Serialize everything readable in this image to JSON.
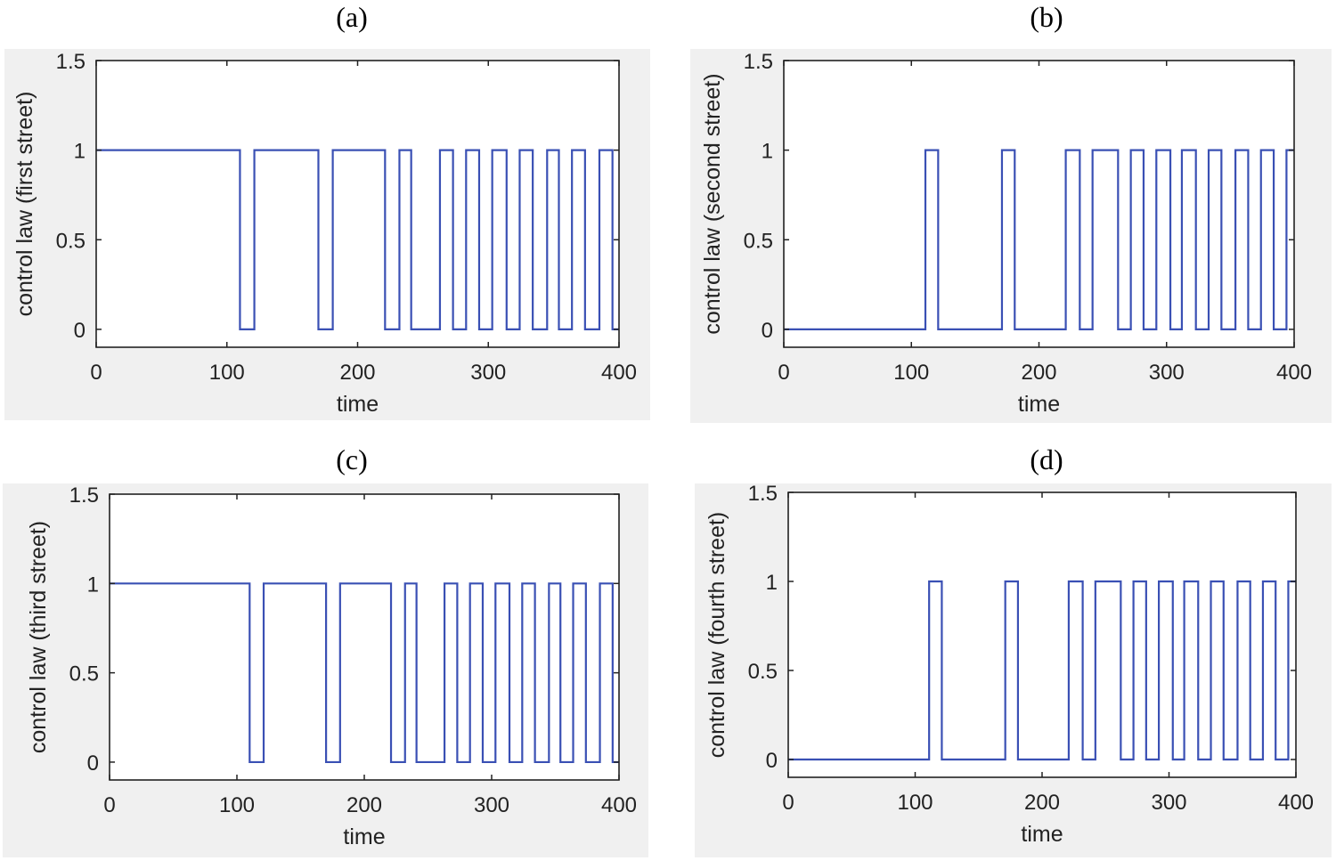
{
  "chart_data": [
    {
      "type": "line",
      "panel_label": "(a)",
      "xlabel": "time",
      "ylabel": "control law (first street)",
      "xlim": [
        0,
        400
      ],
      "ylim": [
        -0.1,
        1.5
      ],
      "xticks": [
        0,
        100,
        200,
        300,
        400
      ],
      "yticks": [
        0,
        0.5,
        1,
        1.5
      ],
      "ytick_labels": [
        "0",
        "0.5",
        "1",
        "1.5"
      ],
      "grid": false,
      "color": "#3a50b4",
      "initial_value": 1,
      "switch_times": [
        110,
        121,
        170,
        181,
        221,
        232,
        241,
        263,
        273,
        283,
        293,
        303,
        314,
        324,
        334,
        345,
        354,
        364,
        374,
        385,
        395
      ]
    },
    {
      "type": "line",
      "panel_label": "(b)",
      "xlabel": "time",
      "ylabel": "control law (second street)",
      "xlim": [
        0,
        400
      ],
      "ylim": [
        -0.1,
        1.5
      ],
      "xticks": [
        0,
        100,
        200,
        300,
        400
      ],
      "yticks": [
        0,
        0.5,
        1,
        1.5
      ],
      "ytick_labels": [
        "0",
        "0.5",
        "1",
        "1.5"
      ],
      "grid": false,
      "color": "#3a50b4",
      "initial_value": 0,
      "switch_times": [
        111,
        121,
        171,
        181,
        221,
        232,
        242,
        262,
        272,
        282,
        292,
        303,
        312,
        323,
        333,
        343,
        354,
        364,
        374,
        384,
        394
      ]
    },
    {
      "type": "line",
      "panel_label": "(c)",
      "xlabel": "time",
      "ylabel": "control law (third street)",
      "xlim": [
        0,
        400
      ],
      "ylim": [
        -0.1,
        1.5
      ],
      "xticks": [
        0,
        100,
        200,
        300,
        400
      ],
      "yticks": [
        0,
        0.5,
        1,
        1.5
      ],
      "ytick_labels": [
        "0",
        "0.5",
        "1",
        "1.5"
      ],
      "grid": false,
      "color": "#3a50b4",
      "initial_value": 1,
      "switch_times": [
        110,
        121,
        170,
        181,
        221,
        232,
        241,
        263,
        273,
        283,
        293,
        303,
        314,
        324,
        334,
        345,
        354,
        364,
        374,
        385,
        395
      ]
    },
    {
      "type": "line",
      "panel_label": "(d)",
      "xlabel": "time",
      "ylabel": "control law (fourth street)",
      "xlim": [
        0,
        400
      ],
      "ylim": [
        -0.1,
        1.5
      ],
      "xticks": [
        0,
        100,
        200,
        300,
        400
      ],
      "yticks": [
        0,
        0.5,
        1,
        1.5
      ],
      "ytick_labels": [
        "0",
        "0.5",
        "1",
        "1.5"
      ],
      "grid": false,
      "color": "#3a50b4",
      "initial_value": 0,
      "switch_times": [
        111,
        121,
        171,
        181,
        221,
        232,
        242,
        262,
        272,
        282,
        292,
        303,
        312,
        323,
        333,
        343,
        354,
        364,
        374,
        384,
        394
      ]
    }
  ]
}
